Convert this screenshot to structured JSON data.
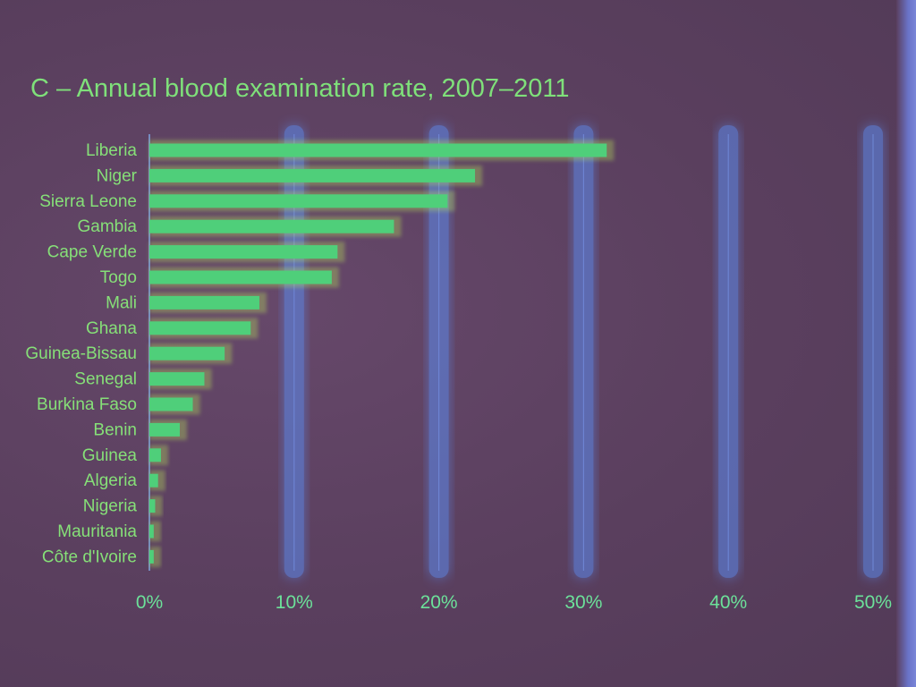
{
  "chart_data": {
    "type": "bar",
    "orientation": "horizontal",
    "title": "C – Annual blood examination rate, 2007–2011",
    "categories": [
      "Liberia",
      "Niger",
      "Sierra Leone",
      "Gambia",
      "Cape Verde",
      "Togo",
      "Mali",
      "Ghana",
      "Guinea-Bissau",
      "Senegal",
      "Burkina Faso",
      "Benin",
      "Guinea",
      "Algeria",
      "Nigeria",
      "Mauritania",
      "Côte d'Ivoire"
    ],
    "values": [
      31.6,
      22.5,
      20.6,
      16.9,
      13.0,
      12.6,
      7.6,
      7.0,
      5.2,
      3.8,
      3.0,
      2.1,
      0.8,
      0.6,
      0.4,
      0.3,
      0.3
    ],
    "x_ticks": [
      "0%",
      "10%",
      "20%",
      "30%",
      "40%",
      "50%"
    ],
    "xlim": [
      0,
      50
    ],
    "grid": true,
    "colors": {
      "bar": "#4fcf7a",
      "gridline": "#6f86d6",
      "gridline_glow": "#5d8cf0"
    }
  }
}
